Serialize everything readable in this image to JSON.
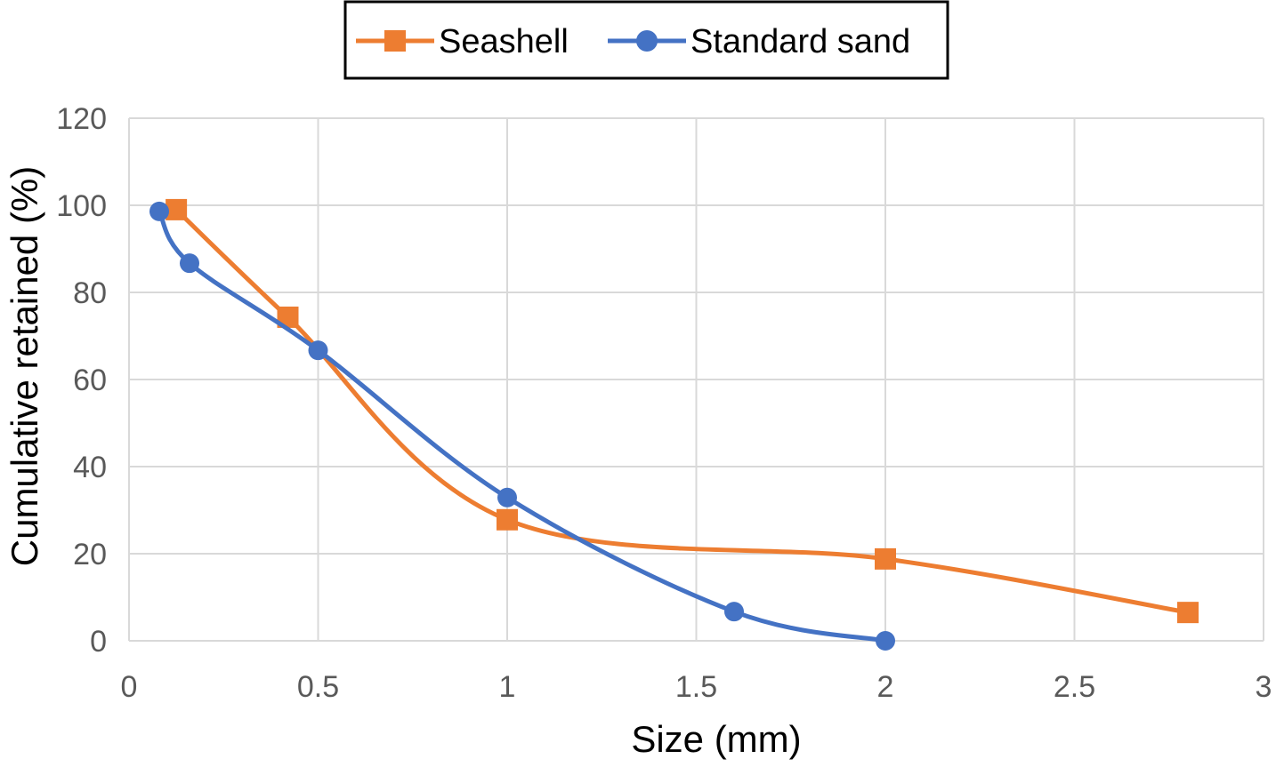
{
  "chart_data": {
    "type": "line",
    "title": "",
    "xlabel": "Size (mm)",
    "ylabel": "Cumulative retained (%)",
    "xlim": [
      0,
      3
    ],
    "ylim": [
      0,
      120
    ],
    "xticks": [
      "0",
      "0.5",
      "1",
      "1.5",
      "2",
      "2.5",
      "3"
    ],
    "yticks": [
      "0",
      "20",
      "40",
      "60",
      "80",
      "100",
      "120"
    ],
    "grid": true,
    "smoothed": true,
    "legend_position": "top",
    "series": [
      {
        "name": "Seashell",
        "color": "#ED7D31",
        "marker": "square",
        "x": [
          0.125,
          0.42,
          1.0,
          2.0,
          2.8
        ],
        "y": [
          99,
          74.3,
          27.8,
          18.8,
          6.5
        ]
      },
      {
        "name": "Standard sand",
        "color": "#4472C4",
        "marker": "circle",
        "x": [
          0.08,
          0.16,
          0.5,
          1.0,
          1.6,
          2.0
        ],
        "y": [
          98.6,
          86.7,
          66.7,
          32.9,
          6.7,
          0
        ]
      }
    ]
  }
}
